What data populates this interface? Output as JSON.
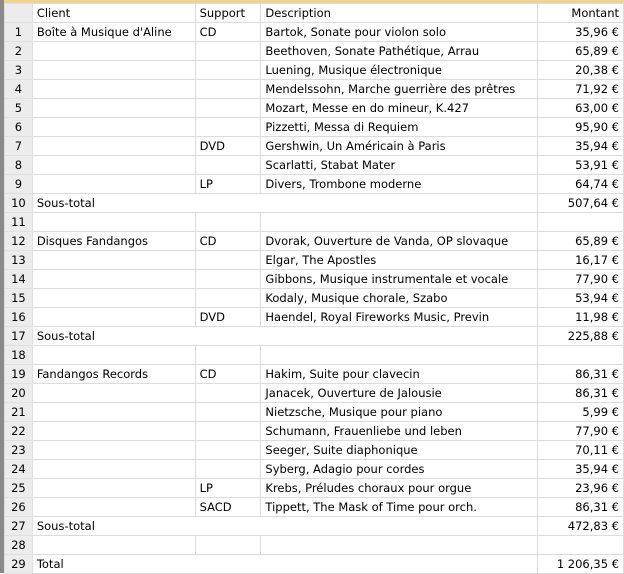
{
  "columns": {
    "client": "Client",
    "support": "Support",
    "description": "Description",
    "amount": "Montant"
  },
  "rows": [
    {
      "n": "1",
      "client": "Boîte à Musique d'Aline",
      "support": "CD",
      "description": "Bartok, Sonate pour violon solo",
      "amount": "35,96 €"
    },
    {
      "n": "2",
      "client": "",
      "support": "",
      "description": "Beethoven, Sonate Pathétique, Arrau",
      "amount": "65,89 €"
    },
    {
      "n": "3",
      "client": "",
      "support": "",
      "description": "Luening, Musique électronique",
      "amount": "20,38 €"
    },
    {
      "n": "4",
      "client": "",
      "support": "",
      "description": "Mendelssohn, Marche guerrière des prêtres",
      "amount": "71,92 €"
    },
    {
      "n": "5",
      "client": "",
      "support": "",
      "description": "Mozart, Messe en do mineur, K.427",
      "amount": "63,00 €"
    },
    {
      "n": "6",
      "client": "",
      "support": "",
      "description": "Pizzetti, Messa di Requiem",
      "amount": "95,90 €"
    },
    {
      "n": "7",
      "client": "",
      "support": "DVD",
      "description": "Gershwin, Un Américain à Paris",
      "amount": "35,94 €"
    },
    {
      "n": "8",
      "client": "",
      "support": "",
      "description": "Scarlatti, Stabat Mater",
      "amount": "53,91 €"
    },
    {
      "n": "9",
      "client": "",
      "support": "LP",
      "description": "Divers, Trombone moderne",
      "amount": "64,74 €"
    },
    {
      "n": "10",
      "type": "sub",
      "client": "Sous-total",
      "amount": "507,64 €"
    },
    {
      "n": "11",
      "client": "",
      "support": "",
      "description": "",
      "amount": ""
    },
    {
      "n": "12",
      "client": "Disques Fandangos",
      "support": "CD",
      "description": "Dvorak, Ouverture de Vanda, OP slovaque",
      "amount": "65,89 €"
    },
    {
      "n": "13",
      "client": "",
      "support": "",
      "description": "Elgar, The Apostles",
      "amount": "16,17 €"
    },
    {
      "n": "14",
      "client": "",
      "support": "",
      "description": "Gibbons, Musique instrumentale et vocale",
      "amount": "77,90 €"
    },
    {
      "n": "15",
      "client": "",
      "support": "",
      "description": "Kodaly, Musique chorale, Szabo",
      "amount": "53,94 €"
    },
    {
      "n": "16",
      "client": "",
      "support": "DVD",
      "description": "Haendel, Royal Fireworks Music, Previn",
      "amount": "11,98 €"
    },
    {
      "n": "17",
      "type": "sub",
      "client": "Sous-total",
      "amount": "225,88 €"
    },
    {
      "n": "18",
      "client": "",
      "support": "",
      "description": "",
      "amount": ""
    },
    {
      "n": "19",
      "client": "Fandangos Records",
      "support": "CD",
      "description": "Hakim, Suite pour clavecin",
      "amount": "86,31 €"
    },
    {
      "n": "20",
      "client": "",
      "support": "",
      "description": "Janacek, Ouverture de Jalousie",
      "amount": "86,31 €"
    },
    {
      "n": "21",
      "client": "",
      "support": "",
      "description": "Nietzsche, Musique pour piano",
      "amount": "5,99 €"
    },
    {
      "n": "22",
      "client": "",
      "support": "",
      "description": "Schumann, Frauenliebe und leben",
      "amount": "77,90 €"
    },
    {
      "n": "23",
      "client": "",
      "support": "",
      "description": "Seeger, Suite diaphonique",
      "amount": "70,11 €"
    },
    {
      "n": "24",
      "client": "",
      "support": "",
      "description": "Syberg, Adagio pour cordes",
      "amount": "35,94 €"
    },
    {
      "n": "25",
      "client": "",
      "support": "LP",
      "description": "Krebs, Préludes choraux pour orgue",
      "amount": "23,96 €"
    },
    {
      "n": "26",
      "client": "",
      "support": "SACD",
      "description": "Tippett, The Mask of Time pour orch.",
      "amount": "86,31 €"
    },
    {
      "n": "27",
      "type": "sub",
      "client": "Sous-total",
      "amount": "472,83 €"
    },
    {
      "n": "28",
      "client": "",
      "support": "",
      "description": "",
      "amount": ""
    },
    {
      "n": "29",
      "type": "sub",
      "client": "Total",
      "amount": "1 206,35 €"
    }
  ]
}
